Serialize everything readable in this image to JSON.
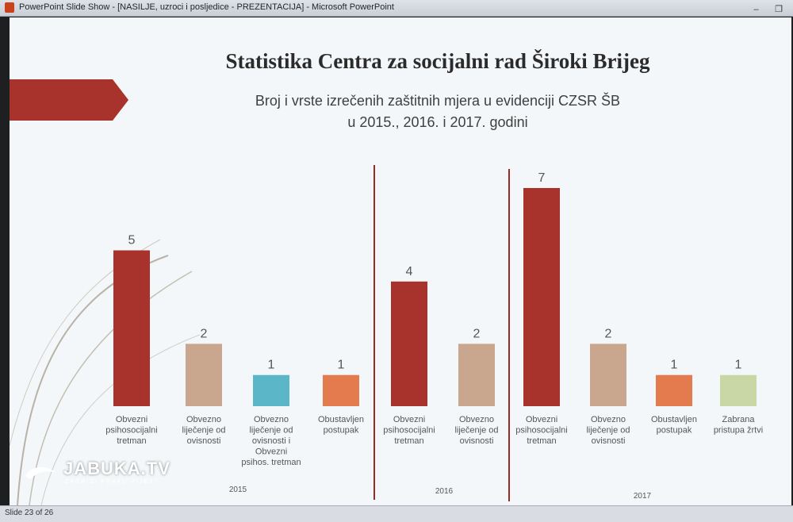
{
  "window": {
    "title": "PowerPoint Slide Show - [NASILJE, uzroci i posljedice - PREZENTACIJA] - Microsoft PowerPoint",
    "minimize_glyph": "–",
    "restore_glyph": "❐"
  },
  "statusbar": {
    "slide_indicator": "Slide 23 of 26"
  },
  "slide": {
    "title": "Statistika Centra za socijalni rad Široki Brijeg",
    "subtitle_line1": "Broj i vrste izrečenih zaštitnih mjera u evidenciji CZSR ŠB",
    "subtitle_line2": "u 2015., 2016. i 2017. godini"
  },
  "logo": {
    "brand": "JABUKA.TV",
    "tagline": "ZAGRIZI PRAVU VIJEST"
  },
  "colors": {
    "psihosocijalni": "#a8322c",
    "ovisnosti": "#c9a78f",
    "ovisnosti_psihos": "#5bb7c8",
    "obustavljen": "#e47b4f",
    "zabrana": "#c9d7a6",
    "separator": "#9b2a24"
  },
  "chart_data": {
    "type": "bar",
    "title": "Statistika Centra za socijalni rad Široki Brijeg",
    "subtitle": "Broj i vrste izrečenih zaštitnih mjera u evidenciji CZSR ŠB u 2015., 2016. i 2017. godini",
    "groups": [
      {
        "year": "2015",
        "bars": [
          {
            "label": [
              "Obvezni",
              "psihosocijalni",
              "tretman"
            ],
            "value": 5,
            "color_key": "psihosocijalni"
          },
          {
            "label": [
              "Obvezno",
              "liječenje od",
              "ovisnosti"
            ],
            "value": 2,
            "color_key": "ovisnosti"
          },
          {
            "label": [
              "Obvezno",
              "liječenje od",
              "ovisnosti i",
              "Obvezni",
              "psihos. tretman"
            ],
            "value": 1,
            "color_key": "ovisnosti_psihos"
          },
          {
            "label": [
              "Obustavljen",
              "postupak"
            ],
            "value": 1,
            "color_key": "obustavljen"
          }
        ]
      },
      {
        "year": "2016",
        "bars": [
          {
            "label": [
              "Obvezni",
              "psihosocijalni",
              "tretman"
            ],
            "value": 4,
            "color_key": "psihosocijalni"
          },
          {
            "label": [
              "Obvezno",
              "liječenje od",
              "ovisnosti"
            ],
            "value": 2,
            "color_key": "ovisnosti"
          }
        ]
      },
      {
        "year": "2017",
        "bars": [
          {
            "label": [
              "Obvezni",
              "psihosocijalni",
              "tretman"
            ],
            "value": 7,
            "color_key": "psihosocijalni"
          },
          {
            "label": [
              "Obvezno",
              "liječenje od",
              "ovisnosti"
            ],
            "value": 2,
            "color_key": "ovisnosti"
          },
          {
            "label": [
              "Obustavljen",
              "postupak"
            ],
            "value": 1,
            "color_key": "obustavljen"
          },
          {
            "label": [
              "Zabrana",
              "pristupa žrtvi"
            ],
            "value": 1,
            "color_key": "zabrana"
          }
        ]
      }
    ],
    "ylim": [
      0,
      7
    ],
    "grid": false,
    "legend": "none"
  }
}
